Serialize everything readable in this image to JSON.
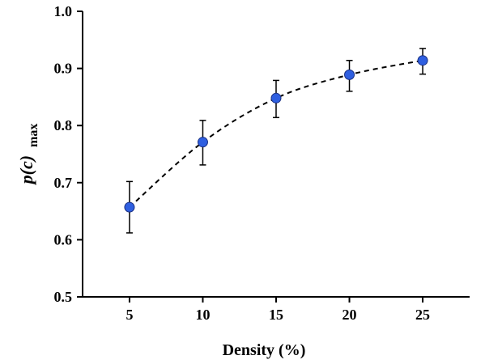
{
  "chart_data": {
    "type": "scatter",
    "title": "",
    "xlabel": "Density (%)",
    "ylabel_main": "p(c)",
    "ylabel_sub": "max",
    "x": [
      5,
      10,
      15,
      20,
      25
    ],
    "series": [
      {
        "values": [
          0.657,
          0.771,
          0.848,
          0.889,
          0.914
        ],
        "err_low": [
          0.612,
          0.731,
          0.814,
          0.86,
          0.89
        ],
        "err_high": [
          0.702,
          0.809,
          0.879,
          0.914,
          0.935
        ],
        "color": "#2f5fe0",
        "line_style": "dashed"
      }
    ],
    "xticks": [
      "5",
      "10",
      "15",
      "20",
      "25"
    ],
    "yticks": [
      "0.5",
      "0.6",
      "0.7",
      "0.8",
      "0.9",
      "1.0"
    ],
    "xlim": [
      1.8,
      28.2
    ],
    "ylim": [
      0.5,
      1.0
    ],
    "grid": false,
    "legend": "none"
  }
}
